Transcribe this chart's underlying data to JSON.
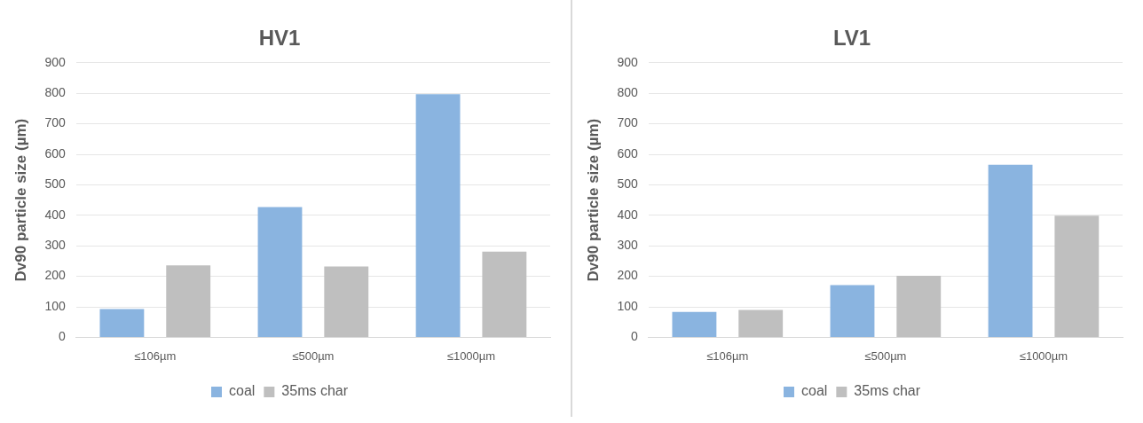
{
  "chart_data": [
    {
      "type": "bar",
      "title": "HV1",
      "ylabel": "Dv90 particle size (µm)",
      "categories": [
        "≤106µm",
        "≤500µm",
        "≤1000µm"
      ],
      "series": [
        {
          "name": "coal",
          "color": "#8ab4e0",
          "values": [
            93,
            427,
            797
          ]
        },
        {
          "name": "35ms char",
          "color": "#bfbfbf",
          "values": [
            236,
            232,
            281
          ]
        }
      ],
      "ylim": [
        0,
        900
      ],
      "yticks": [
        0,
        100,
        200,
        300,
        400,
        500,
        600,
        700,
        800,
        900
      ],
      "grid": "y",
      "legend": "bottom"
    },
    {
      "type": "bar",
      "title": "LV1",
      "ylabel": "Dv90 particle size (µm)",
      "categories": [
        "≤106µm",
        "≤500µm",
        "≤1000µm"
      ],
      "series": [
        {
          "name": "coal",
          "color": "#8ab4e0",
          "values": [
            83,
            171,
            566
          ]
        },
        {
          "name": "35ms char",
          "color": "#bfbfbf",
          "values": [
            90,
            202,
            399
          ]
        }
      ],
      "ylim": [
        0,
        900
      ],
      "yticks": [
        0,
        100,
        200,
        300,
        400,
        500,
        600,
        700,
        800,
        900
      ],
      "grid": "y",
      "legend": "bottom"
    }
  ]
}
